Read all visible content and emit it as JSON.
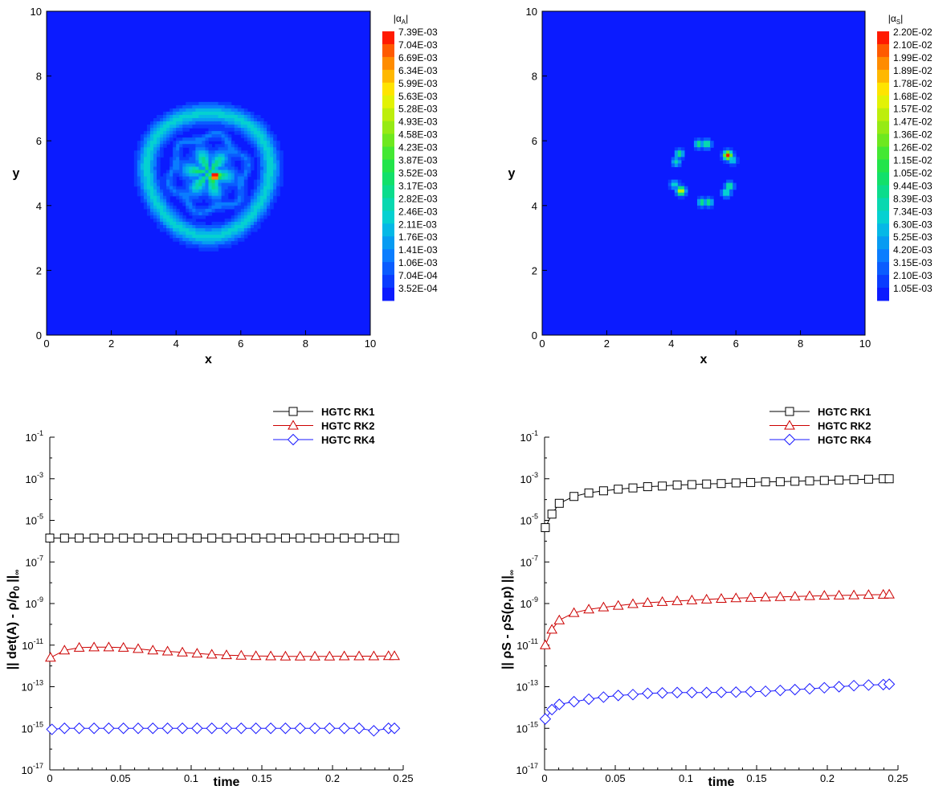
{
  "chart_data": [
    {
      "type": "heatmap",
      "title": "",
      "xlabel": "x",
      "ylabel": "y",
      "xlim": [
        0,
        10
      ],
      "ylim": [
        0,
        10
      ],
      "x_ticks": [
        "0",
        "2",
        "4",
        "6",
        "8",
        "10"
      ],
      "y_ticks": [
        "0",
        "2",
        "4",
        "6",
        "8",
        "10"
      ],
      "colorbar_title": "|αA|",
      "colorbar_title_main": "|α",
      "colorbar_title_sub": "A",
      "colorbar_levels": [
        "7.39E-03",
        "7.04E-03",
        "6.69E-03",
        "6.34E-03",
        "5.99E-03",
        "5.63E-03",
        "5.28E-03",
        "4.93E-03",
        "4.58E-03",
        "4.23E-03",
        "3.87E-03",
        "3.52E-03",
        "3.17E-03",
        "2.82E-03",
        "2.46E-03",
        "2.11E-03",
        "1.76E-03",
        "1.41E-03",
        "1.06E-03",
        "7.04E-04",
        "3.52E-04"
      ],
      "pattern": "ring",
      "features": {
        "center": [
          5,
          5
        ],
        "outer_ring_radius": 1.9,
        "outer_ring_level": 0.3,
        "inner_ring_radius": 1.15,
        "inner_ring_level": 0.15,
        "core_radius": 0.8,
        "core_level": 0.45,
        "hotspot": [
          5.2,
          4.9
        ],
        "hotspot_level": 1.0
      }
    },
    {
      "type": "heatmap",
      "title": "",
      "xlabel": "x",
      "ylabel": "y",
      "xlim": [
        0,
        10
      ],
      "ylim": [
        0,
        10
      ],
      "x_ticks": [
        "0",
        "2",
        "4",
        "6",
        "8",
        "10"
      ],
      "y_ticks": [
        "0",
        "2",
        "4",
        "6",
        "8",
        "10"
      ],
      "colorbar_title": "|αS|",
      "colorbar_title_main": "|α",
      "colorbar_title_sub": "S",
      "colorbar_levels": [
        "2.20E-02",
        "2.10E-02",
        "1.99E-02",
        "1.89E-02",
        "1.78E-02",
        "1.68E-02",
        "1.57E-02",
        "1.47E-02",
        "1.36E-02",
        "1.26E-02",
        "1.15E-02",
        "1.05E-02",
        "9.44E-03",
        "8.39E-03",
        "7.34E-03",
        "6.30E-03",
        "5.25E-03",
        "4.20E-03",
        "3.15E-03",
        "2.10E-03",
        "1.05E-03"
      ],
      "pattern": "spots",
      "features": {
        "spots": [
          [
            4.25,
            5.6,
            0.45
          ],
          [
            4.15,
            5.35,
            0.35
          ],
          [
            4.85,
            5.9,
            0.45
          ],
          [
            5.1,
            5.9,
            0.45
          ],
          [
            5.75,
            5.55,
            1.0
          ],
          [
            5.9,
            5.4,
            0.35
          ],
          [
            5.8,
            4.6,
            0.45
          ],
          [
            5.7,
            4.4,
            0.4
          ],
          [
            4.95,
            4.1,
            0.45
          ],
          [
            5.15,
            4.1,
            0.45
          ],
          [
            4.3,
            4.45,
            0.8
          ],
          [
            4.1,
            4.65,
            0.35
          ]
        ]
      }
    },
    {
      "type": "line",
      "title": "",
      "xlabel": "time",
      "ylabel": "|| det(A) - ρ/ρ0 ||∞",
      "ylabel_parts": [
        "|| det(A) - ρ/ρ",
        "0",
        " ||",
        "∞"
      ],
      "xlim": [
        0,
        0.25
      ],
      "ylim_exp": [
        -17,
        -1
      ],
      "yscale": "log",
      "x_ticks": [
        "0",
        "0.05",
        "0.1",
        "0.15",
        "0.2",
        "0.25"
      ],
      "y_tick_exponents": [
        "-17",
        "-15",
        "-13",
        "-11",
        "-9",
        "-7",
        "-5",
        "-3",
        "-1"
      ],
      "legend_position": "top-right",
      "series": [
        {
          "name": "HGTC RK1",
          "color": "#000000",
          "marker": "square",
          "x": [
            0,
            0.0104,
            0.0208,
            0.0313,
            0.0417,
            0.0521,
            0.0625,
            0.0729,
            0.0833,
            0.0938,
            0.1042,
            0.1146,
            0.125,
            0.1354,
            0.1458,
            0.1563,
            0.1667,
            0.1771,
            0.1875,
            0.1979,
            0.2083,
            0.2188,
            0.2292,
            0.2396,
            0.2438
          ],
          "log10y": [
            -5.85,
            -5.85,
            -5.85,
            -5.85,
            -5.85,
            -5.85,
            -5.85,
            -5.85,
            -5.85,
            -5.85,
            -5.85,
            -5.85,
            -5.85,
            -5.85,
            -5.85,
            -5.85,
            -5.85,
            -5.85,
            -5.85,
            -5.85,
            -5.85,
            -5.85,
            -5.85,
            -5.85,
            -5.86
          ]
        },
        {
          "name": "HGTC RK2",
          "color": "#cc0000",
          "marker": "triangle",
          "x": [
            0.0005,
            0.0104,
            0.0208,
            0.0313,
            0.0417,
            0.0521,
            0.0625,
            0.0729,
            0.0833,
            0.0938,
            0.1042,
            0.1146,
            0.125,
            0.1354,
            0.1458,
            0.1563,
            0.1667,
            0.1771,
            0.1875,
            0.1979,
            0.2083,
            0.2188,
            0.2292,
            0.2396,
            0.2438
          ],
          "log10y": [
            -11.6,
            -11.25,
            -11.12,
            -11.1,
            -11.1,
            -11.12,
            -11.18,
            -11.25,
            -11.3,
            -11.35,
            -11.4,
            -11.45,
            -11.48,
            -11.5,
            -11.52,
            -11.53,
            -11.54,
            -11.54,
            -11.54,
            -11.54,
            -11.53,
            -11.53,
            -11.53,
            -11.52,
            -11.52
          ]
        },
        {
          "name": "HGTC RK4",
          "color": "#1a1aff",
          "marker": "diamond",
          "x": [
            0.0015,
            0.0104,
            0.0208,
            0.0313,
            0.0417,
            0.0521,
            0.0625,
            0.0729,
            0.0833,
            0.0938,
            0.1042,
            0.1146,
            0.125,
            0.1354,
            0.1458,
            0.1563,
            0.1667,
            0.1771,
            0.1875,
            0.1979,
            0.2083,
            0.2188,
            0.2292,
            0.2396,
            0.2438
          ],
          "log10y": [
            -15.05,
            -15.0,
            -15.0,
            -15.0,
            -15.0,
            -15.0,
            -15.0,
            -15.0,
            -15.0,
            -15.0,
            -15.0,
            -15.0,
            -15.0,
            -15.0,
            -15.0,
            -15.0,
            -15.0,
            -15.0,
            -15.0,
            -15.0,
            -15.0,
            -15.0,
            -15.12,
            -15.0,
            -15.0
          ]
        }
      ]
    },
    {
      "type": "line",
      "title": "",
      "xlabel": "time",
      "ylabel": "|| ρS - ρS(ρ,p) ||∞",
      "ylabel_parts": [
        "|| ρS - ρS(ρ,p) ||",
        "",
        "",
        "∞"
      ],
      "xlim": [
        0,
        0.25
      ],
      "ylim_exp": [
        -17,
        -1
      ],
      "yscale": "log",
      "x_ticks": [
        "0",
        "0.05",
        "0.1",
        "0.15",
        "0.2",
        "0.25"
      ],
      "y_tick_exponents": [
        "-17",
        "-15",
        "-13",
        "-11",
        "-9",
        "-7",
        "-5",
        "-3",
        "-1"
      ],
      "legend_position": "top-right",
      "series": [
        {
          "name": "HGTC RK1",
          "color": "#000000",
          "marker": "square",
          "x": [
            0.0005,
            0.0052,
            0.0104,
            0.0208,
            0.0313,
            0.0417,
            0.0521,
            0.0625,
            0.0729,
            0.0833,
            0.0938,
            0.1042,
            0.1146,
            0.125,
            0.1354,
            0.1458,
            0.1563,
            0.1667,
            0.1771,
            0.1875,
            0.1979,
            0.2083,
            0.2188,
            0.2292,
            0.2396,
            0.2438
          ],
          "log10y": [
            -5.35,
            -4.7,
            -4.18,
            -3.85,
            -3.68,
            -3.58,
            -3.5,
            -3.44,
            -3.38,
            -3.35,
            -3.3,
            -3.28,
            -3.25,
            -3.23,
            -3.2,
            -3.18,
            -3.15,
            -3.14,
            -3.12,
            -3.1,
            -3.08,
            -3.06,
            -3.04,
            -3.02,
            -3.0,
            -3.0
          ]
        },
        {
          "name": "HGTC RK2",
          "color": "#cc0000",
          "marker": "triangle",
          "x": [
            0.0005,
            0.0052,
            0.0104,
            0.0208,
            0.0313,
            0.0417,
            0.0521,
            0.0625,
            0.0729,
            0.0833,
            0.0938,
            0.1042,
            0.1146,
            0.125,
            0.1354,
            0.1458,
            0.1563,
            0.1667,
            0.1771,
            0.1875,
            0.1979,
            0.2083,
            0.2188,
            0.2292,
            0.2396,
            0.2438
          ],
          "log10y": [
            -11.0,
            -10.25,
            -9.8,
            -9.45,
            -9.28,
            -9.18,
            -9.1,
            -9.02,
            -8.96,
            -8.92,
            -8.88,
            -8.84,
            -8.8,
            -8.77,
            -8.74,
            -8.72,
            -8.7,
            -8.68,
            -8.66,
            -8.64,
            -8.62,
            -8.61,
            -8.6,
            -8.58,
            -8.57,
            -8.56
          ]
        },
        {
          "name": "HGTC RK4",
          "color": "#1a1aff",
          "marker": "diamond",
          "x": [
            0.0005,
            0.0052,
            0.0104,
            0.0208,
            0.0313,
            0.0417,
            0.0521,
            0.0625,
            0.0729,
            0.0833,
            0.0938,
            0.1042,
            0.1146,
            0.125,
            0.1354,
            0.1458,
            0.1563,
            0.1667,
            0.1771,
            0.1875,
            0.1979,
            0.2083,
            0.2188,
            0.2292,
            0.2396,
            0.2438
          ],
          "log10y": [
            -14.55,
            -14.1,
            -13.85,
            -13.72,
            -13.6,
            -13.5,
            -13.42,
            -13.38,
            -13.32,
            -13.3,
            -13.28,
            -13.28,
            -13.28,
            -13.27,
            -13.26,
            -13.24,
            -13.22,
            -13.18,
            -13.14,
            -13.1,
            -13.05,
            -13.0,
            -12.95,
            -12.92,
            -12.9,
            -12.88
          ]
        }
      ]
    }
  ]
}
